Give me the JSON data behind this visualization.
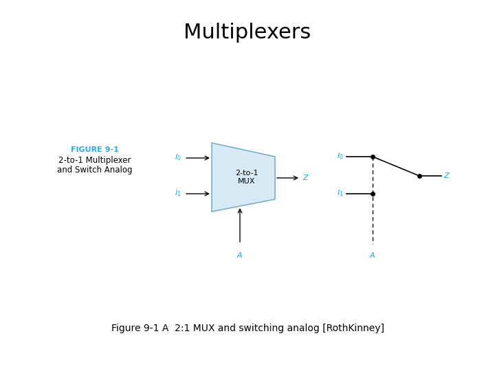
{
  "title": "Multiplexers",
  "title_fontsize": 22,
  "title_fontweight": "normal",
  "caption": "Figure 9-1 A  2:1 MUX and switching analog [RothKinney]",
  "caption_fontsize": 10,
  "caption_fontweight": "normal",
  "bg_color": "#ffffff",
  "figure_label": "FIGURE 9-1",
  "figure_label_color": "#29abe2",
  "figure_label_fontsize": 8,
  "figure_desc_line1": "2-to-1 Multiplexer",
  "figure_desc_line2": "and Switch Analog",
  "figure_desc_fontsize": 8.5,
  "mux_label": "2-to-1\nMUX",
  "mux_label_fontsize": 8,
  "cyan_color": "#29abe2",
  "black_color": "#000000",
  "label_fontsize": 8,
  "trap_edgecolor": "#7bafc4",
  "trap_facecolor": "#d6eaf5"
}
